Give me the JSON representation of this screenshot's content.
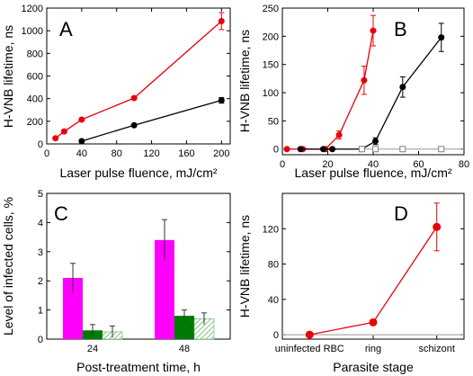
{
  "colors": {
    "red": "#e8000b",
    "black": "#000000",
    "magenta": "#ff00ff",
    "green": "#007a00",
    "hatch_green": "#5fb85f",
    "axis": "#000000"
  },
  "chart_data": [
    {
      "panel": "A",
      "type": "line",
      "xlabel": "Laser pulse fluence, mJ/cm²",
      "ylabel": "H-VNB lifetime, ns",
      "xlim": [
        0,
        210
      ],
      "ylim": [
        0,
        1200
      ],
      "xticks": [
        0,
        40,
        80,
        120,
        160,
        200
      ],
      "yticks": [
        0,
        200,
        400,
        600,
        800,
        1000,
        1200
      ],
      "series": [
        {
          "color": "red",
          "marker": "circle",
          "x": [
            10,
            20,
            40,
            100,
            200
          ],
          "y": [
            50,
            110,
            215,
            405,
            1085
          ],
          "err": [
            0,
            0,
            0,
            10,
            75
          ]
        },
        {
          "color": "black",
          "marker": "circle",
          "x": [
            40,
            100,
            200
          ],
          "y": [
            25,
            165,
            385
          ],
          "err": [
            0,
            0,
            25
          ]
        }
      ]
    },
    {
      "panel": "B",
      "type": "line",
      "xlabel": "Laser pulse fluence, mJ/cm²",
      "ylabel": "H-VNB lifetime, ns",
      "xlim": [
        0,
        80
      ],
      "ylim": [
        -10,
        250
      ],
      "xticks": [
        0,
        20,
        40,
        60,
        80
      ],
      "yticks": [
        0,
        50,
        100,
        150,
        200,
        250
      ],
      "zero_line": true,
      "series": [
        {
          "color": "red",
          "marker": "circle",
          "x": [
            2,
            9,
            19,
            25,
            36,
            40
          ],
          "y": [
            0,
            0,
            0,
            25,
            122,
            210
          ],
          "err": [
            0,
            0,
            0,
            7,
            25,
            27
          ]
        },
        {
          "color": "black",
          "marker": "circle",
          "x": [
            8,
            18,
            22,
            35,
            41,
            53,
            70
          ],
          "y": [
            0,
            0,
            0,
            0,
            14,
            110,
            198
          ],
          "err": [
            0,
            0,
            0,
            0,
            6,
            18,
            25
          ]
        },
        {
          "color": "gray",
          "marker": "open-square",
          "x": [
            35,
            41,
            53,
            70
          ],
          "y": [
            0,
            0,
            0,
            0
          ],
          "err": [
            0,
            0,
            0,
            0
          ]
        }
      ]
    },
    {
      "panel": "C",
      "type": "bar",
      "xlabel": "Post-treatment time, h",
      "ylabel": "Level of infected cells, %",
      "categories": [
        "24",
        "48"
      ],
      "ylim": [
        0,
        5
      ],
      "yticks": [
        0,
        1,
        2,
        3,
        4,
        5
      ],
      "series": [
        {
          "style": "magenta",
          "values": [
            2.1,
            3.4
          ],
          "err": [
            0.5,
            0.7
          ]
        },
        {
          "style": "green",
          "values": [
            0.3,
            0.8
          ],
          "err": [
            0.2,
            0.2
          ]
        },
        {
          "style": "hatched",
          "values": [
            0.25,
            0.7
          ],
          "err": [
            0.2,
            0.2
          ]
        }
      ]
    },
    {
      "panel": "D",
      "type": "line",
      "xlabel": "Parasite stage",
      "ylabel": "H-VNB lifetime, ns",
      "categories": [
        "uninfected RBC",
        "ring",
        "schizont"
      ],
      "ylim": [
        -5,
        160
      ],
      "yticks": [
        0,
        40,
        80,
        120
      ],
      "zero_line": true,
      "series": [
        {
          "color": "red",
          "marker": "circle",
          "values": [
            0,
            14,
            122
          ],
          "err": [
            0,
            3,
            27
          ]
        }
      ]
    }
  ]
}
